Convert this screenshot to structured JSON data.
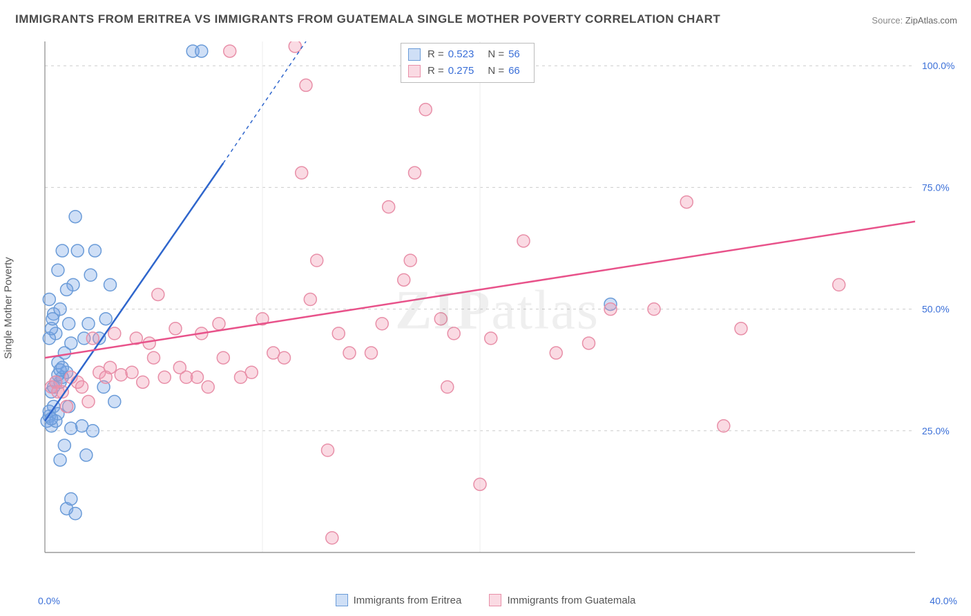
{
  "title": "IMMIGRANTS FROM ERITREA VS IMMIGRANTS FROM GUATEMALA SINGLE MOTHER POVERTY CORRELATION CHART",
  "source_label": "Source:",
  "source_value": "ZipAtlas.com",
  "yaxis_label": "Single Mother Poverty",
  "watermark": "ZIPatlas",
  "chart": {
    "type": "scatter",
    "background_color": "#ffffff",
    "grid_color": "#cccccc",
    "axis_color": "#888888",
    "tick_fontsize": 14,
    "tick_color": "#3a6fd8",
    "xlim": [
      0,
      40
    ],
    "ylim": [
      0,
      105
    ],
    "xticks": [
      {
        "v": 0,
        "label": "0.0%"
      },
      {
        "v": 40,
        "label": "40.0%"
      }
    ],
    "yticks": [
      {
        "v": 25,
        "label": "25.0%"
      },
      {
        "v": 50,
        "label": "50.0%"
      },
      {
        "v": 75,
        "label": "75.0%"
      },
      {
        "v": 100,
        "label": "100.0%"
      }
    ],
    "xdivs": [
      10,
      20
    ],
    "marker_radius": 9,
    "marker_stroke_width": 1.5,
    "line_width": 2.5
  },
  "series": [
    {
      "name": "Immigrants from Eritrea",
      "color_fill": "rgba(117,163,230,0.35)",
      "color_stroke": "#6a9bd8",
      "line_color": "#2f66cc",
      "R": "0.523",
      "N": "56",
      "trend": {
        "x1": 0,
        "y1": 27,
        "x2_solid": 8.2,
        "y2_solid": 80,
        "x2_dash": 12,
        "y2_dash": 105
      },
      "points": [
        [
          0.1,
          27
        ],
        [
          0.2,
          28
        ],
        [
          0.3,
          26
        ],
        [
          0.4,
          30
        ],
        [
          0.2,
          29
        ],
        [
          0.5,
          27
        ],
        [
          0.6,
          28.5
        ],
        [
          0.3,
          27.5
        ],
        [
          0.7,
          35
        ],
        [
          0.8,
          36
        ],
        [
          1.0,
          37
        ],
        [
          0.6,
          39
        ],
        [
          0.9,
          41
        ],
        [
          1.2,
          43
        ],
        [
          0.5,
          45
        ],
        [
          1.1,
          47
        ],
        [
          0.4,
          49
        ],
        [
          0.2,
          52
        ],
        [
          0.7,
          50
        ],
        [
          1.3,
          55
        ],
        [
          0.6,
          58
        ],
        [
          1.0,
          54
        ],
        [
          1.5,
          62
        ],
        [
          0.8,
          62
        ],
        [
          1.4,
          69
        ],
        [
          2.3,
          62
        ],
        [
          2.1,
          57
        ],
        [
          2.8,
          48
        ],
        [
          2.0,
          47
        ],
        [
          3.0,
          55
        ],
        [
          2.5,
          44
        ],
        [
          1.8,
          44
        ],
        [
          3.2,
          31
        ],
        [
          2.2,
          25
        ],
        [
          1.7,
          26
        ],
        [
          1.2,
          25.5
        ],
        [
          0.9,
          22
        ],
        [
          1.9,
          20
        ],
        [
          0.7,
          19
        ],
        [
          1.0,
          9
        ],
        [
          1.4,
          8
        ],
        [
          1.2,
          11
        ],
        [
          0.3,
          33
        ],
        [
          0.4,
          34
        ],
        [
          0.5,
          35
        ],
        [
          0.6,
          36.5
        ],
        [
          0.7,
          37.5
        ],
        [
          0.8,
          38
        ],
        [
          2.7,
          34
        ],
        [
          1.1,
          30
        ],
        [
          6.8,
          103
        ],
        [
          7.2,
          103
        ],
        [
          26.0,
          51
        ],
        [
          0.2,
          44
        ],
        [
          0.3,
          46
        ],
        [
          0.35,
          48
        ]
      ]
    },
    {
      "name": "Immigrants from Guatemala",
      "color_fill": "rgba(240,150,175,0.35)",
      "color_stroke": "#e88fa8",
      "line_color": "#e8528a",
      "R": "0.275",
      "N": "66",
      "trend": {
        "x1": 0,
        "y1": 40,
        "x2_solid": 40,
        "y2_solid": 68,
        "x2_dash": 40,
        "y2_dash": 68
      },
      "points": [
        [
          0.3,
          34
        ],
        [
          0.5,
          35
        ],
        [
          0.8,
          33
        ],
        [
          1.2,
          36
        ],
        [
          1.5,
          35
        ],
        [
          2.0,
          31
        ],
        [
          2.5,
          37
        ],
        [
          3.0,
          38
        ],
        [
          1.0,
          30
        ],
        [
          1.7,
          34
        ],
        [
          2.8,
          36
        ],
        [
          3.5,
          36.5
        ],
        [
          4.0,
          37
        ],
        [
          4.5,
          35
        ],
        [
          5.0,
          40
        ],
        [
          5.5,
          36
        ],
        [
          6.0,
          46
        ],
        [
          6.5,
          36
        ],
        [
          7.0,
          36
        ],
        [
          7.5,
          34
        ],
        [
          8.5,
          103
        ],
        [
          8.0,
          47
        ],
        [
          11.5,
          104
        ],
        [
          12.0,
          96
        ],
        [
          11.8,
          78
        ],
        [
          12.2,
          52
        ],
        [
          12.5,
          60
        ],
        [
          13.0,
          21
        ],
        [
          13.2,
          3
        ],
        [
          13.5,
          45
        ],
        [
          14.0,
          41
        ],
        [
          15.0,
          41
        ],
        [
          15.5,
          47
        ],
        [
          15.8,
          71
        ],
        [
          16.5,
          56
        ],
        [
          16.8,
          60
        ],
        [
          17.0,
          78
        ],
        [
          17.5,
          91
        ],
        [
          18.2,
          48
        ],
        [
          18.5,
          34
        ],
        [
          18.8,
          45
        ],
        [
          20.0,
          14
        ],
        [
          20.5,
          44
        ],
        [
          22.0,
          64
        ],
        [
          23.5,
          41
        ],
        [
          25.0,
          43
        ],
        [
          26.0,
          50
        ],
        [
          28.0,
          50
        ],
        [
          29.5,
          72
        ],
        [
          31.2,
          26
        ],
        [
          32.0,
          46
        ],
        [
          36.5,
          55
        ],
        [
          4.2,
          44
        ],
        [
          4.8,
          43
        ],
        [
          3.2,
          45
        ],
        [
          2.2,
          44
        ],
        [
          5.2,
          53
        ],
        [
          6.2,
          38
        ],
        [
          7.2,
          45
        ],
        [
          8.2,
          40
        ],
        [
          9.0,
          36
        ],
        [
          9.5,
          37
        ],
        [
          10.0,
          48
        ],
        [
          10.5,
          41
        ],
        [
          11.0,
          40
        ],
        [
          0.6,
          33
        ]
      ]
    }
  ],
  "legend_labels": {
    "R": "R =",
    "N": "N ="
  }
}
